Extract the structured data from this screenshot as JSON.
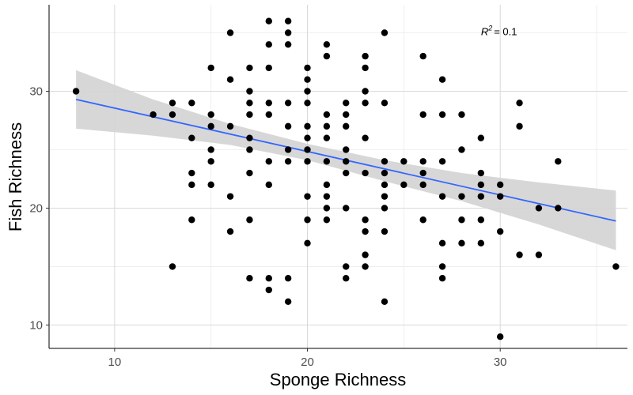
{
  "chart_data": {
    "type": "scatter",
    "title": "",
    "xlabel": "Sponge Richness",
    "ylabel": "Fish Richness",
    "xlim": [
      6.6,
      36.6
    ],
    "ylim": [
      8.0,
      37.4
    ],
    "xticks": [
      10,
      20,
      30
    ],
    "yticks": [
      10,
      20,
      30
    ],
    "grid": true,
    "annotation": {
      "symbol": "R",
      "exponent": "2",
      "value": "= 0.1",
      "x": 29.0,
      "y": 34.8
    },
    "trend_line": {
      "x": [
        8,
        36
      ],
      "y": [
        29.3,
        18.9
      ],
      "color": "#3366ff"
    },
    "confidence_band": {
      "x": [
        8,
        12,
        16,
        20,
        24,
        28,
        32,
        36
      ],
      "upper": [
        31.8,
        29.3,
        27.2,
        25.5,
        24.1,
        23.0,
        22.2,
        21.5
      ],
      "lower": [
        26.8,
        26.2,
        25.4,
        24.1,
        22.3,
        20.6,
        18.6,
        16.4
      ],
      "color": "#d3d3d3"
    },
    "point_color": "#000000",
    "points": [
      [
        8,
        30
      ],
      [
        12,
        28
      ],
      [
        13,
        29
      ],
      [
        13,
        28
      ],
      [
        13,
        15
      ],
      [
        14,
        29
      ],
      [
        14,
        26
      ],
      [
        14,
        23
      ],
      [
        14,
        22
      ],
      [
        14,
        19
      ],
      [
        15,
        32
      ],
      [
        15,
        28
      ],
      [
        15,
        27
      ],
      [
        15,
        25
      ],
      [
        15,
        24
      ],
      [
        15,
        22
      ],
      [
        16,
        35
      ],
      [
        16,
        31
      ],
      [
        16,
        27
      ],
      [
        16,
        21
      ],
      [
        16,
        18
      ],
      [
        17,
        32
      ],
      [
        17,
        30
      ],
      [
        17,
        29
      ],
      [
        17,
        28
      ],
      [
        17,
        26
      ],
      [
        17,
        25
      ],
      [
        17,
        23
      ],
      [
        17,
        19
      ],
      [
        17,
        14
      ],
      [
        18,
        36
      ],
      [
        18,
        34
      ],
      [
        18,
        32
      ],
      [
        18,
        29
      ],
      [
        18,
        28
      ],
      [
        18,
        24
      ],
      [
        18,
        22
      ],
      [
        18,
        14
      ],
      [
        18,
        13
      ],
      [
        19,
        36
      ],
      [
        19,
        35
      ],
      [
        19,
        34
      ],
      [
        19,
        29
      ],
      [
        19,
        27
      ],
      [
        19,
        25
      ],
      [
        19,
        24
      ],
      [
        19,
        14
      ],
      [
        19,
        12
      ],
      [
        20,
        32
      ],
      [
        20,
        31
      ],
      [
        20,
        30
      ],
      [
        20,
        29
      ],
      [
        20,
        27
      ],
      [
        20,
        26
      ],
      [
        20,
        25
      ],
      [
        20,
        24
      ],
      [
        20,
        21
      ],
      [
        20,
        19
      ],
      [
        20,
        17
      ],
      [
        21,
        34
      ],
      [
        21,
        33
      ],
      [
        21,
        28
      ],
      [
        21,
        27
      ],
      [
        21,
        26
      ],
      [
        21,
        24
      ],
      [
        21,
        22
      ],
      [
        21,
        21
      ],
      [
        21,
        20
      ],
      [
        21,
        19
      ],
      [
        22,
        29
      ],
      [
        22,
        28
      ],
      [
        22,
        27
      ],
      [
        22,
        25
      ],
      [
        22,
        24
      ],
      [
        22,
        23
      ],
      [
        22,
        20
      ],
      [
        22,
        15
      ],
      [
        22,
        14
      ],
      [
        23,
        33
      ],
      [
        23,
        32
      ],
      [
        23,
        30
      ],
      [
        23,
        29
      ],
      [
        23,
        26
      ],
      [
        23,
        23
      ],
      [
        23,
        19
      ],
      [
        23,
        18
      ],
      [
        23,
        16
      ],
      [
        23,
        15
      ],
      [
        24,
        35
      ],
      [
        24,
        29
      ],
      [
        24,
        24
      ],
      [
        24,
        23
      ],
      [
        24,
        22
      ],
      [
        24,
        21
      ],
      [
        24,
        20
      ],
      [
        24,
        18
      ],
      [
        24,
        12
      ],
      [
        25,
        24
      ],
      [
        25,
        22
      ],
      [
        26,
        33
      ],
      [
        26,
        28
      ],
      [
        26,
        24
      ],
      [
        26,
        23
      ],
      [
        26,
        22
      ],
      [
        26,
        19
      ],
      [
        27,
        31
      ],
      [
        27,
        28
      ],
      [
        27,
        24
      ],
      [
        27,
        21
      ],
      [
        27,
        17
      ],
      [
        27,
        15
      ],
      [
        27,
        14
      ],
      [
        28,
        28
      ],
      [
        28,
        25
      ],
      [
        28,
        21
      ],
      [
        28,
        19
      ],
      [
        28,
        17
      ],
      [
        29,
        26
      ],
      [
        29,
        23
      ],
      [
        29,
        22
      ],
      [
        29,
        21
      ],
      [
        29,
        19
      ],
      [
        29,
        17
      ],
      [
        30,
        22
      ],
      [
        30,
        21
      ],
      [
        30,
        18
      ],
      [
        30,
        9
      ],
      [
        31,
        29
      ],
      [
        31,
        27
      ],
      [
        31,
        16
      ],
      [
        32,
        20
      ],
      [
        32,
        16
      ],
      [
        33,
        24
      ],
      [
        33,
        20
      ],
      [
        36,
        15
      ]
    ]
  }
}
